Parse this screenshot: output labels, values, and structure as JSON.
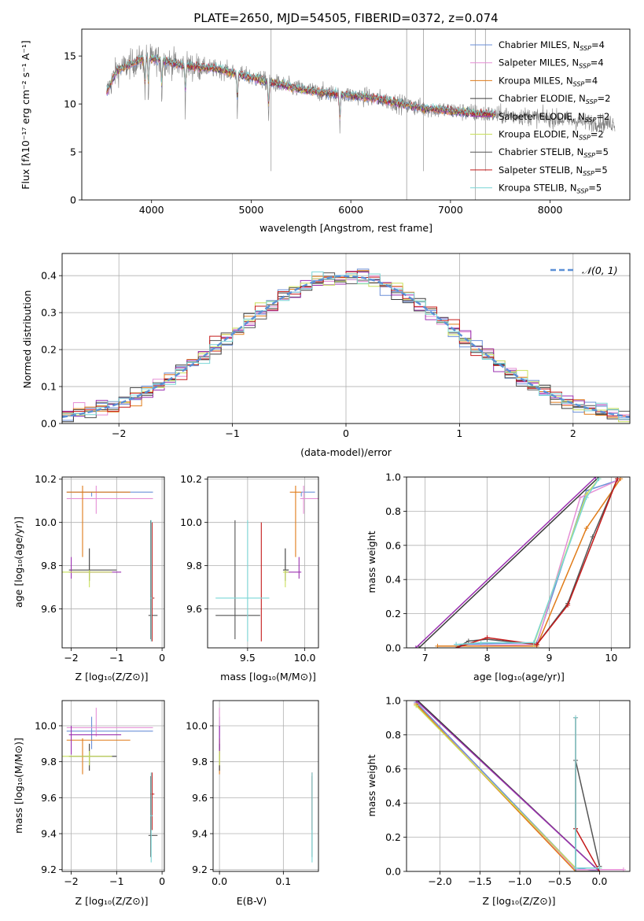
{
  "colors": {
    "chabrier_miles": "#6a8fd8",
    "salpeter_miles": "#e58fd6",
    "kroupa_miles": "#e07b18",
    "chabrier_elodie": "#3a3a3a",
    "salpeter_elodie": "#9b30b0",
    "kroupa_elodie": "#c9e05a",
    "chabrier_stelib": "#555555",
    "salpeter_stelib": "#c41a1a",
    "kroupa_stelib": "#7ad6d6",
    "spectrum": "#808080",
    "normal_curve": "#5b8fd6"
  },
  "chart_data": [
    {
      "type": "line",
      "title": "PLATE=2650, MJD=54505, FIBERID=0372, z=0.074",
      "xlabel": "wavelength [Angstrom, rest frame]",
      "ylabel": "Flux [fλ10⁻¹⁷ erg cm⁻² s⁻¹ A⁻¹]",
      "xlim": [
        3300,
        8800
      ],
      "ylim": [
        0,
        17.8
      ],
      "xticks": [
        "4000",
        "5000",
        "6000",
        "7000",
        "8000"
      ],
      "yticks": [
        "0",
        "5",
        "10",
        "15"
      ],
      "legend_position": "top-right",
      "legend": [
        "Chabrier MILES, N_SSP=4",
        "Salpeter MILES, N_SSP=4",
        "Kroupa MILES, N_SSP=4",
        "Chabrier ELODIE, N_SSP=2",
        "Salpeter ELODIE, N_SSP=2",
        "Kroupa ELODIE, N_SSP=2",
        "Chabrier STELIB, N_SSP=5",
        "Salpeter STELIB, N_SSP=5",
        "Kroupa STELIB, N_SSP=5"
      ],
      "spectrum_continuum": {
        "x": [
          3550,
          3650,
          3800,
          3950,
          4100,
          4300,
          4500,
          4700,
          4900,
          5100,
          5300,
          5500,
          5700,
          5900,
          6100,
          6300,
          6500,
          6700,
          6900,
          7100,
          7300,
          7400,
          7600,
          7800,
          8000,
          8200,
          8400,
          8600
        ],
        "y": [
          11.2,
          13.5,
          14.2,
          14.8,
          14.6,
          14.0,
          13.8,
          13.6,
          13.0,
          12.5,
          12.0,
          11.5,
          11.2,
          11.0,
          10.8,
          10.5,
          10.0,
          9.6,
          9.4,
          9.2,
          9.0,
          8.9,
          8.8,
          8.7,
          8.5,
          8.3,
          8.1,
          8.0
        ]
      },
      "model_range_x": [
        3550,
        7450
      ]
    },
    {
      "type": "line",
      "xlabel": "(data-model)/error",
      "ylabel": "Normed distribution",
      "xlim": [
        -2.5,
        2.5
      ],
      "ylim": [
        0,
        0.46
      ],
      "xticks": [
        "−2",
        "−1",
        "0",
        "1",
        "2"
      ],
      "yticks": [
        "0.0",
        "0.1",
        "0.2",
        "0.3",
        "0.4"
      ],
      "legend_position": "top-right",
      "legend": [
        "𝒩(0, 1)"
      ],
      "normal_curve": {
        "mean": 0,
        "sigma": 1,
        "style": "dashed"
      },
      "histogram_bin_width": 0.1
    },
    {
      "type": "scatter",
      "xlabel": "Z [log₁₀(Z/Z⊙)]",
      "ylabel": "age  [log₁₀(age/yr)]",
      "xlim": [
        -2.2,
        0.05
      ],
      "ylim": [
        9.42,
        10.21
      ],
      "xticks": [
        "−2",
        "−1",
        "0"
      ],
      "yticks": [
        "9.6",
        "9.8",
        "10.0",
        "10.2"
      ],
      "series": [
        {
          "name": "Chabrier MILES",
          "x": [
            -1.55
          ],
          "y": [
            10.14
          ]
        },
        {
          "name": "Salpeter MILES",
          "x": [
            -1.45
          ],
          "y": [
            10.11
          ]
        },
        {
          "name": "Kroupa MILES",
          "x": [
            -1.75
          ],
          "y": [
            10.14
          ]
        },
        {
          "name": "Chabrier ELODIE",
          "x": [
            -1.6
          ],
          "y": [
            9.78
          ]
        },
        {
          "name": "Salpeter ELODIE",
          "x": [
            -2.0
          ],
          "y": [
            9.77
          ]
        },
        {
          "name": "Kroupa ELODIE",
          "x": [
            -1.6
          ],
          "y": [
            9.77
          ]
        },
        {
          "name": "Chabrier STELIB",
          "x": [
            -0.25
          ],
          "y": [
            9.57
          ]
        },
        {
          "name": "Salpeter STELIB",
          "x": [
            -0.22
          ],
          "y": [
            9.65
          ]
        },
        {
          "name": "Kroupa STELIB",
          "x": [
            -0.24
          ],
          "y": [
            9.65
          ]
        }
      ]
    },
    {
      "type": "scatter",
      "xlabel": "mass [log₁₀(M/M⊙)]",
      "xlim": [
        9.15,
        10.12
      ],
      "ylim": [
        9.42,
        10.21
      ],
      "xticks": [
        "9.5",
        "10.0"
      ],
      "yticks": [
        "9.6",
        "9.8",
        "10.0",
        "10.2"
      ],
      "series": [
        {
          "name": "Chabrier MILES",
          "x": [
            9.97
          ],
          "y": [
            10.14
          ]
        },
        {
          "name": "Salpeter MILES",
          "x": [
            9.99
          ],
          "y": [
            10.11
          ]
        },
        {
          "name": "Kroupa MILES",
          "x": [
            9.92
          ],
          "y": [
            10.14
          ]
        },
        {
          "name": "Chabrier ELODIE",
          "x": [
            9.83
          ],
          "y": [
            9.78
          ]
        },
        {
          "name": "Salpeter ELODIE",
          "x": [
            9.95
          ],
          "y": [
            9.77
          ]
        },
        {
          "name": "Kroupa ELODIE",
          "x": [
            9.83
          ],
          "y": [
            9.77
          ]
        },
        {
          "name": "Chabrier STELIB",
          "x": [
            9.39
          ],
          "y": [
            9.57
          ]
        },
        {
          "name": "Salpeter STELIB",
          "x": [
            9.62
          ],
          "y": [
            9.65
          ]
        },
        {
          "name": "Kroupa STELIB",
          "x": [
            9.5
          ],
          "y": [
            9.65
          ]
        }
      ]
    },
    {
      "type": "line",
      "xlabel": "age  [log₁₀(age/yr)]",
      "ylabel": "mass weight",
      "xlim": [
        6.7,
        10.3
      ],
      "ylim": [
        0,
        1.0
      ],
      "xticks": [
        "7",
        "8",
        "9",
        "10"
      ],
      "yticks": [
        "0.0",
        "0.2",
        "0.4",
        "0.6",
        "0.8",
        "1.0"
      ],
      "series": [
        {
          "name": "Chabrier MILES",
          "x": [
            7.5,
            8.8,
            9.6,
            10.1
          ],
          "y": [
            0.02,
            0.03,
            0.92,
            0.98
          ]
        },
        {
          "name": "Salpeter MILES",
          "x": [
            7.5,
            8.8,
            9.5,
            10.1
          ],
          "y": [
            0.01,
            0.02,
            0.88,
            0.98
          ]
        },
        {
          "name": "Kroupa MILES",
          "x": [
            7.2,
            8.8,
            9.6,
            10.15
          ],
          "y": [
            0.01,
            0.01,
            0.7,
            0.99
          ]
        },
        {
          "name": "Chabrier ELODIE",
          "x": [
            6.9,
            9.8
          ],
          "y": [
            0.0,
            1.0
          ]
        },
        {
          "name": "Salpeter ELODIE",
          "x": [
            6.85,
            9.75
          ],
          "y": [
            0.0,
            1.0
          ]
        },
        {
          "name": "Kroupa ELODIE",
          "x": [
            8.75,
            9.6,
            9.8
          ],
          "y": [
            0.02,
            0.9,
            0.99
          ]
        },
        {
          "name": "Chabrier STELIB",
          "x": [
            7.5,
            7.7,
            8.0,
            8.8,
            9.3,
            9.7,
            10.1
          ],
          "y": [
            0.0,
            0.04,
            0.05,
            0.02,
            0.26,
            0.65,
            0.99
          ]
        },
        {
          "name": "Salpeter STELIB",
          "x": [
            7.5,
            8.0,
            8.8,
            9.3,
            10.1
          ],
          "y": [
            0.0,
            0.06,
            0.02,
            0.25,
            0.99
          ]
        },
        {
          "name": "Kroupa STELIB",
          "x": [
            7.5,
            7.9,
            8.75,
            9.6,
            9.8
          ],
          "y": [
            0.02,
            0.03,
            0.03,
            0.88,
            0.99
          ]
        }
      ]
    },
    {
      "type": "scatter",
      "xlabel": "Z [log₁₀(Z/Z⊙)]",
      "ylabel": "mass [log₁₀(M/M⊙)]",
      "xlim": [
        -2.2,
        0.05
      ],
      "ylim": [
        9.19,
        10.14
      ],
      "xticks": [
        "−2",
        "−1",
        "0"
      ],
      "yticks": [
        "9.2",
        "9.4",
        "9.6",
        "9.8",
        "10.0"
      ],
      "series": [
        {
          "name": "Chabrier MILES",
          "x": [
            -1.55
          ],
          "y": [
            9.97
          ]
        },
        {
          "name": "Salpeter MILES",
          "x": [
            -1.45
          ],
          "y": [
            9.99
          ]
        },
        {
          "name": "Kroupa MILES",
          "x": [
            -1.75
          ],
          "y": [
            9.92
          ]
        },
        {
          "name": "Chabrier ELODIE",
          "x": [
            -1.6
          ],
          "y": [
            9.83
          ]
        },
        {
          "name": "Salpeter ELODIE",
          "x": [
            -2.0
          ],
          "y": [
            9.95
          ]
        },
        {
          "name": "Kroupa ELODIE",
          "x": [
            -1.6
          ],
          "y": [
            9.83
          ]
        },
        {
          "name": "Chabrier STELIB",
          "x": [
            -0.25
          ],
          "y": [
            9.39
          ]
        },
        {
          "name": "Salpeter STELIB",
          "x": [
            -0.22
          ],
          "y": [
            9.62
          ]
        },
        {
          "name": "Kroupa STELIB",
          "x": [
            -0.24
          ],
          "y": [
            9.5
          ]
        }
      ]
    },
    {
      "type": "scatter",
      "xlabel": "E(B-V)",
      "xlim": [
        -0.01,
        0.155
      ],
      "ylim": [
        9.19,
        10.14
      ],
      "xticks": [
        "0.0",
        "0.1"
      ],
      "yticks": [
        "9.2",
        "9.4",
        "9.6",
        "9.8",
        "10.0"
      ],
      "series": [
        {
          "name": "Chabrier MILES",
          "x": [
            0.0
          ],
          "y": [
            9.97
          ]
        },
        {
          "name": "Salpeter MILES",
          "x": [
            0.0
          ],
          "y": [
            9.99
          ]
        },
        {
          "name": "Kroupa MILES",
          "x": [
            0.0
          ],
          "y": [
            9.92
          ]
        },
        {
          "name": "Chabrier ELODIE",
          "x": [
            0.0
          ],
          "y": [
            9.83
          ]
        },
        {
          "name": "Salpeter ELODIE",
          "x": [
            0.0
          ],
          "y": [
            9.95
          ]
        },
        {
          "name": "Kroupa ELODIE",
          "x": [
            0.0
          ],
          "y": [
            9.83
          ]
        },
        {
          "name": "Chabrier STELIB",
          "x": [
            0.145
          ],
          "y": [
            9.39
          ]
        },
        {
          "name": "Salpeter STELIB",
          "x": [
            0.145
          ],
          "y": [
            9.62
          ]
        },
        {
          "name": "Kroupa STELIB",
          "x": [
            0.145
          ],
          "y": [
            9.5
          ]
        }
      ]
    },
    {
      "type": "line",
      "xlabel": "Z [log₁₀(Z/Z⊙)]",
      "ylabel": "mass weight",
      "xlim": [
        -2.42,
        0.38
      ],
      "ylim": [
        0,
        1.0
      ],
      "xticks": [
        "−2.0",
        "−1.5",
        "−1.0",
        "−0.5",
        "0.0"
      ],
      "yticks": [
        "0.0",
        "0.2",
        "0.4",
        "0.6",
        "0.8",
        "1.0"
      ],
      "series": [
        {
          "name": "Chabrier MILES",
          "x": [
            -2.3,
            -0.3,
            0.0
          ],
          "y": [
            0.99,
            0.02,
            0.0
          ]
        },
        {
          "name": "Salpeter MILES",
          "x": [
            -2.3,
            -0.3,
            0.3
          ],
          "y": [
            0.98,
            0.01,
            0.01
          ]
        },
        {
          "name": "Kroupa MILES",
          "x": [
            -2.3,
            -0.3,
            0.0
          ],
          "y": [
            0.98,
            0.0,
            0.0
          ]
        },
        {
          "name": "Chabrier ELODIE",
          "x": [
            -2.28,
            0.0
          ],
          "y": [
            1.0,
            0.0
          ]
        },
        {
          "name": "Salpeter ELODIE",
          "x": [
            -2.3,
            0.0
          ],
          "y": [
            1.0,
            0.0
          ]
        },
        {
          "name": "Kroupa ELODIE",
          "x": [
            -2.3,
            -0.3,
            0.0
          ],
          "y": [
            0.97,
            0.02,
            0.02
          ]
        },
        {
          "name": "Chabrier STELIB",
          "x": [
            0.0,
            -0.3,
            -0.3,
            -0.3,
            0.0
          ],
          "y": [
            0.03,
            0.65,
            0.25,
            0.0,
            0.0
          ]
        },
        {
          "name": "Salpeter STELIB",
          "x": [
            -0.3,
            -0.3,
            0.0
          ],
          "y": [
            0.9,
            0.25,
            0.0
          ]
        },
        {
          "name": "Kroupa STELIB",
          "x": [
            -0.3,
            -0.3,
            0.0
          ],
          "y": [
            0.9,
            0.02,
            0.02
          ]
        }
      ]
    }
  ]
}
